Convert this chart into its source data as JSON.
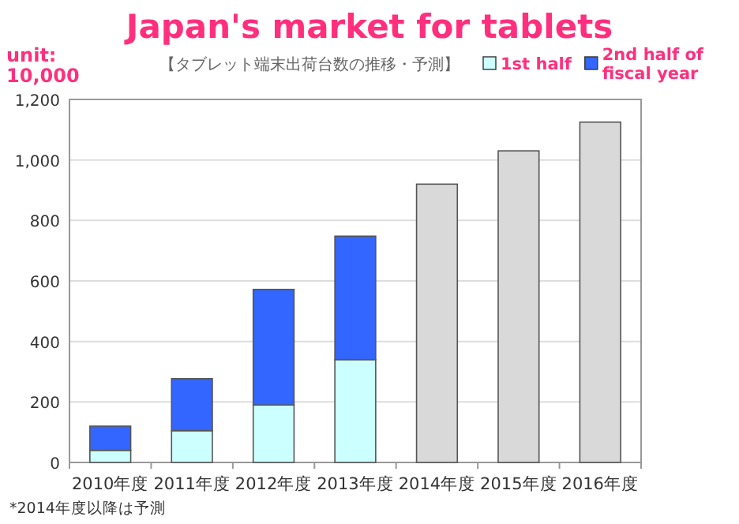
{
  "chart_data": {
    "type": "bar",
    "title": "Japan's market for tablets",
    "subtitle": "【タブレット端末出荷台数の推移・予測】",
    "ylabel": "unit: 10,000",
    "categories": [
      "2010年度",
      "2011年度",
      "2012年度",
      "2013年度",
      "2014年度",
      "2015年度",
      "2016年度"
    ],
    "series": [
      {
        "name": "1st half",
        "color": "#ccffff",
        "values": [
          40,
          105,
          190,
          340,
          null,
          null,
          null
        ]
      },
      {
        "name": "2nd half of fiscal year",
        "color": "#3366ff",
        "values": [
          80,
          172,
          382,
          408,
          null,
          null,
          null
        ]
      },
      {
        "color": "#d9d9d9",
        "values": [
          null,
          null,
          null,
          null,
          920,
          1030,
          1125
        ]
      }
    ],
    "stacked": true,
    "ylim": [
      0,
      1200
    ],
    "yticks": [
      0,
      200,
      400,
      600,
      800,
      {
        "value": 1000,
        "label": "1,000"
      },
      {
        "value": 1200,
        "label": "1,200"
      }
    ],
    "grid": "y",
    "legend": "top right",
    "annotations": [
      "*2014年度以降は予測"
    ]
  }
}
